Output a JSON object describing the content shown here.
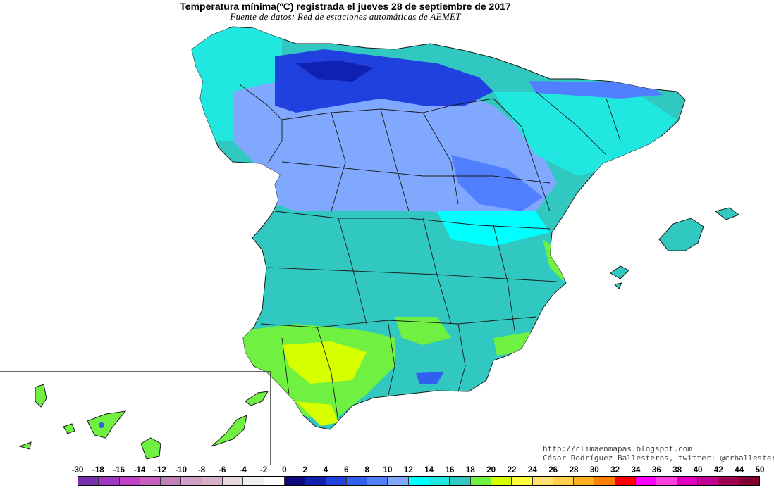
{
  "title": "Temperatura mínima(ºC) registrada el jueves 28 de septiembre de 2017",
  "subtitle": "Fuente de datos: Red de estaciones automáticas de AEMET",
  "credits": {
    "blog": "http://climaenmapas.blogspot.com",
    "author": "César Rodríguez Ballesteros, twitter: @crballesteros"
  },
  "legend": {
    "labels": [
      "-30",
      "-18",
      "-16",
      "-14",
      "-12",
      "-10",
      "-8",
      "-6",
      "-4",
      "-2",
      "0",
      "2",
      "4",
      "6",
      "8",
      "10",
      "12",
      "14",
      "16",
      "18",
      "20",
      "22",
      "24",
      "26",
      "28",
      "30",
      "32",
      "34",
      "36",
      "38",
      "40",
      "42",
      "44",
      "50"
    ],
    "colors": [
      "#7a2fb0",
      "#a035c0",
      "#c040c8",
      "#c860c0",
      "#c080b8",
      "#d0a0c8",
      "#d8b0c8",
      "#e8d8e0",
      "#f0f0f0",
      "#ffffff",
      "#0a0a7a",
      "#1020b0",
      "#2040e0",
      "#3060f0",
      "#5080ff",
      "#80a8ff",
      "#00ffff",
      "#20e8e0",
      "#30c8c0",
      "#70f040",
      "#d8ff00",
      "#ffff40",
      "#ffe070",
      "#ffd050",
      "#ffb020",
      "#ff8000",
      "#ff0000",
      "#ff00ff",
      "#ff40e0",
      "#e000c0",
      "#c00090",
      "#a00050",
      "#800030"
    ]
  },
  "regions": [
    {
      "name": "peninsula-main",
      "color": "#30c8c0"
    },
    {
      "name": "north-cold",
      "color": "#80a8ff"
    },
    {
      "name": "cantabrian-cold",
      "color": "#2040e0"
    },
    {
      "name": "south-warm",
      "color": "#d8ff00"
    },
    {
      "name": "east-coast-warm",
      "color": "#70f040"
    },
    {
      "name": "canary-islands",
      "color": "#70f040"
    },
    {
      "name": "balearic-islands",
      "color": "#30c8c0"
    }
  ]
}
